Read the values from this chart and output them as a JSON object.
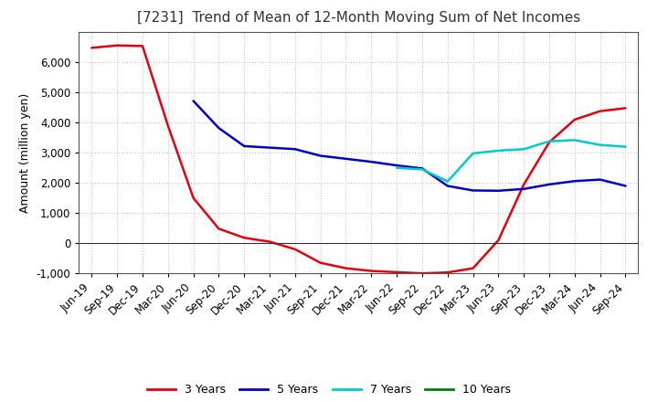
{
  "title": "[7231]  Trend of Mean of 12-Month Moving Sum of Net Incomes",
  "ylabel": "Amount (million yen)",
  "x_labels": [
    "Jun-19",
    "Sep-19",
    "Dec-19",
    "Mar-20",
    "Jun-20",
    "Sep-20",
    "Dec-20",
    "Mar-21",
    "Jun-21",
    "Sep-21",
    "Dec-21",
    "Mar-22",
    "Jun-22",
    "Sep-22",
    "Dec-22",
    "Mar-23",
    "Jun-23",
    "Sep-23",
    "Dec-23",
    "Mar-24",
    "Jun-24",
    "Sep-24"
  ],
  "ylim": [
    -1000,
    7000
  ],
  "yticks": [
    -1000,
    0,
    1000,
    2000,
    3000,
    4000,
    5000,
    6000
  ],
  "series_order": [
    "3 Years",
    "5 Years",
    "7 Years",
    "10 Years"
  ],
  "series": {
    "3 Years": {
      "color": "#e8000d",
      "data": [
        6480,
        6560,
        6540,
        3900,
        1500,
        480,
        180,
        50,
        -200,
        -650,
        -830,
        -920,
        -960,
        -1000,
        -970,
        -830,
        100,
        1950,
        3350,
        4100,
        4380,
        4480
      ]
    },
    "5 Years": {
      "color": "#0000cc",
      "data": [
        null,
        null,
        null,
        null,
        4720,
        3820,
        3220,
        3170,
        3120,
        2900,
        2800,
        2700,
        2580,
        2480,
        1900,
        1750,
        1740,
        1800,
        1950,
        2060,
        2110,
        1900
      ]
    },
    "7 Years": {
      "color": "#00cccc",
      "data": [
        null,
        null,
        null,
        null,
        null,
        null,
        null,
        null,
        null,
        null,
        null,
        null,
        2500,
        2450,
        2050,
        2980,
        3070,
        3120,
        3380,
        3420,
        3260,
        3200
      ]
    },
    "10 Years": {
      "color": "#008000",
      "data": [
        null,
        null,
        null,
        null,
        null,
        null,
        null,
        null,
        null,
        null,
        null,
        null,
        null,
        null,
        null,
        null,
        null,
        null,
        null,
        null,
        null,
        null
      ]
    }
  },
  "background_color": "#ffffff",
  "grid_color": "#aaaaaa",
  "title_fontsize": 11,
  "label_fontsize": 9,
  "tick_fontsize": 8.5,
  "legend_fontsize": 9
}
